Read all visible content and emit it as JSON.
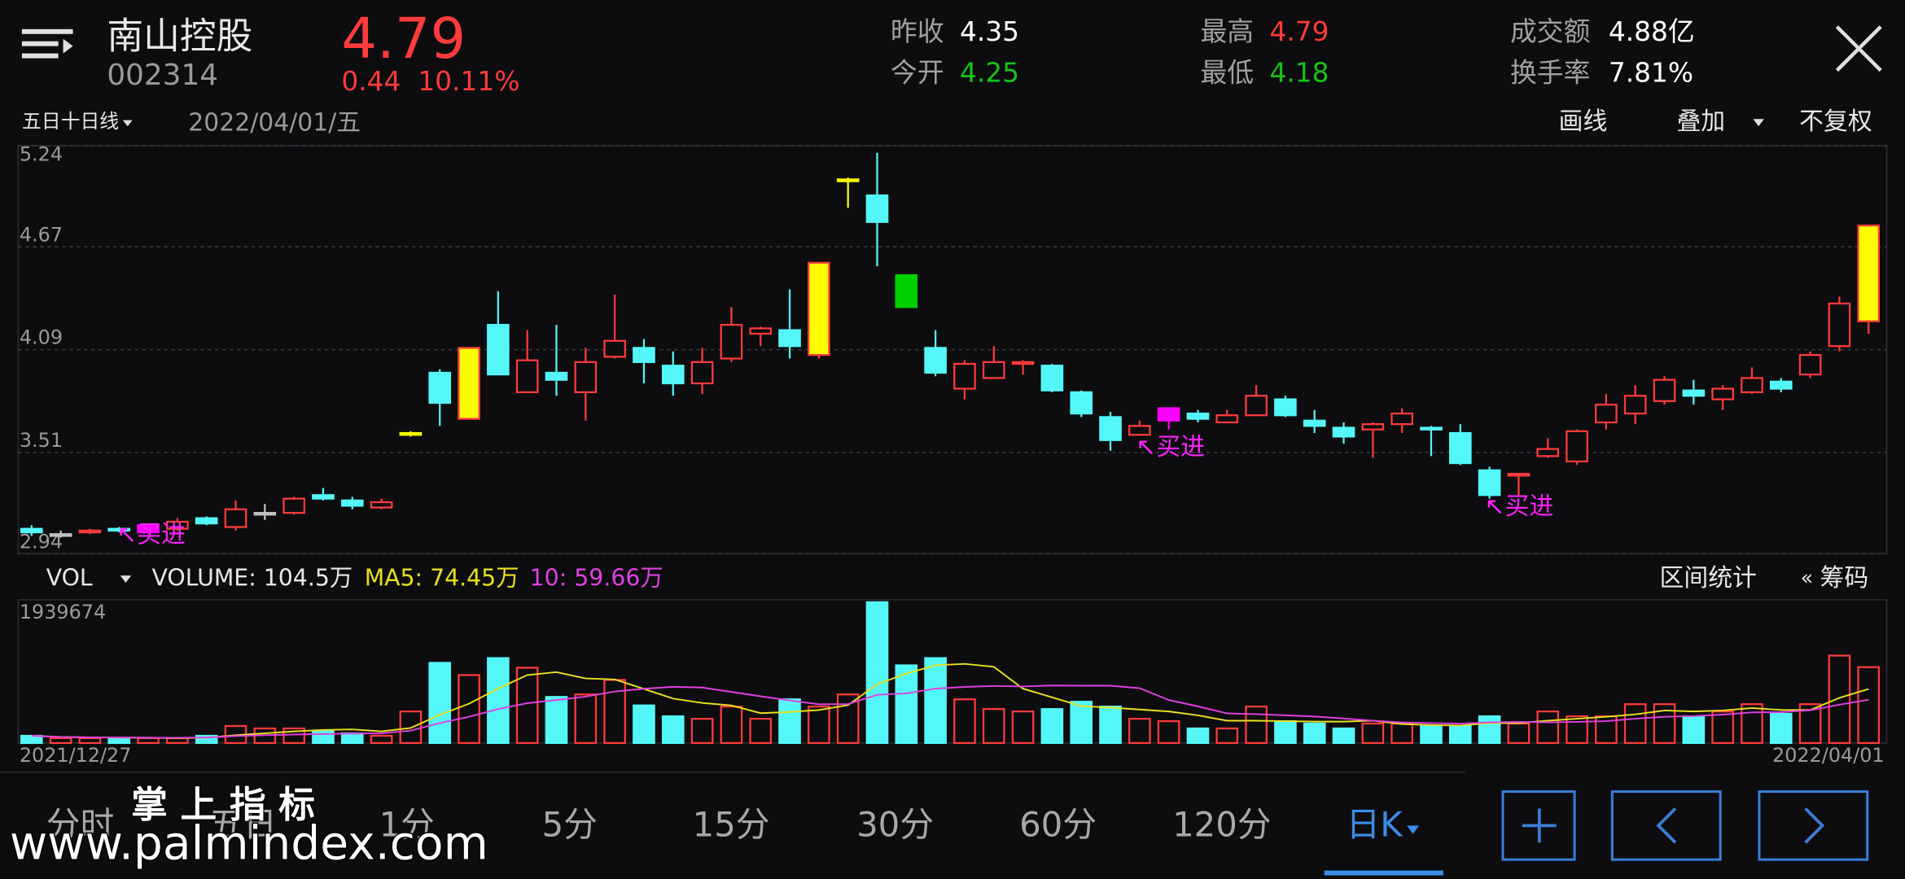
{
  "header": {
    "name": "南山控股",
    "code": "002314",
    "price": "4.79",
    "change": "0.44",
    "change_pct": "10.11%",
    "stats": [
      {
        "label": "昨收",
        "value": "4.35",
        "color": "#ffffff"
      },
      {
        "label": "今开",
        "value": "4.25",
        "color": "#19c119"
      },
      {
        "label": "最高",
        "value": "4.79",
        "color": "#ff3b3b"
      },
      {
        "label": "最低",
        "value": "4.18",
        "color": "#19c119"
      },
      {
        "label": "成交额",
        "value": "4.88亿",
        "color": "#ffffff"
      },
      {
        "label": "换手率",
        "value": "7.81%",
        "color": "#ffffff"
      }
    ]
  },
  "toolbar": {
    "ma_selector": "五日十日线",
    "date": "2022/04/01/五",
    "buttons": [
      "画线",
      "叠加",
      "不复权"
    ]
  },
  "chart_data": [
    {
      "type": "candlestick",
      "categories": [
        "2021/12/27",
        null,
        null,
        null,
        null,
        null,
        null,
        null,
        null,
        null,
        null,
        null,
        null,
        null,
        null,
        null,
        null,
        null,
        null,
        null,
        null,
        null,
        null,
        null,
        null,
        null,
        null,
        null,
        null,
        null,
        null,
        null,
        null,
        null,
        null,
        null,
        null,
        null,
        null,
        null,
        null,
        null,
        null,
        null,
        null,
        null,
        null,
        null,
        null,
        null,
        null,
        null,
        null,
        null,
        null,
        null,
        null,
        null,
        null,
        null,
        null,
        null,
        null,
        "2022/04/01"
      ],
      "open": [
        3.08,
        3.05,
        3.06,
        3.08,
        3.06,
        3.08,
        3.14,
        3.09,
        3.17,
        3.17,
        3.27,
        3.24,
        3.2,
        3.61,
        3.96,
        3.7,
        4.23,
        3.85,
        3.96,
        3.85,
        4.05,
        4.1,
        4.0,
        3.9,
        4.04,
        4.18,
        4.2,
        4.06,
        5.05,
        4.96,
        4.51,
        4.1,
        3.87,
        3.93,
        4.01,
        4.0,
        3.85,
        3.71,
        3.61,
        3.69,
        3.73,
        3.68,
        3.72,
        3.81,
        3.69,
        3.65,
        3.64,
        3.67,
        3.65,
        3.62,
        3.41,
        3.38,
        3.49,
        3.46,
        3.68,
        3.73,
        3.8,
        3.86,
        3.81,
        3.85,
        3.91,
        3.95,
        4.11,
        4.25
      ],
      "high": [
        3.1,
        3.07,
        3.08,
        3.09,
        3.11,
        3.14,
        3.15,
        3.24,
        3.22,
        3.26,
        3.31,
        3.26,
        3.25,
        3.63,
        3.98,
        4.1,
        4.42,
        4.2,
        4.23,
        4.1,
        4.4,
        4.15,
        4.08,
        4.1,
        4.33,
        4.22,
        4.43,
        4.58,
        5.06,
        5.2,
        4.51,
        4.2,
        4.03,
        4.11,
        4.03,
        4.01,
        3.86,
        3.74,
        3.69,
        3.76,
        3.75,
        3.75,
        3.89,
        3.83,
        3.75,
        3.68,
        3.68,
        3.76,
        3.66,
        3.67,
        3.43,
        3.39,
        3.59,
        3.64,
        3.84,
        3.89,
        3.94,
        3.92,
        3.89,
        3.99,
        3.93,
        4.08,
        4.39,
        4.79
      ],
      "low": [
        3.04,
        3.03,
        3.05,
        3.06,
        3.05,
        3.07,
        3.1,
        3.07,
        3.13,
        3.16,
        3.24,
        3.19,
        3.19,
        3.6,
        3.66,
        3.7,
        3.95,
        3.85,
        3.83,
        3.69,
        4.04,
        3.9,
        3.83,
        3.84,
        4.02,
        4.11,
        4.04,
        4.04,
        4.89,
        4.56,
        4.33,
        3.94,
        3.81,
        3.93,
        3.95,
        3.85,
        3.71,
        3.52,
        3.61,
        3.64,
        3.68,
        3.68,
        3.72,
        3.71,
        3.62,
        3.56,
        3.48,
        3.62,
        3.49,
        3.44,
        3.25,
        3.27,
        3.48,
        3.44,
        3.64,
        3.67,
        3.78,
        3.78,
        3.75,
        3.84,
        3.85,
        3.93,
        4.08,
        4.18
      ],
      "close": [
        3.06,
        3.05,
        3.07,
        3.07,
        3.1,
        3.12,
        3.11,
        3.19,
        3.17,
        3.25,
        3.25,
        3.21,
        3.23,
        3.62,
        3.79,
        4.1,
        3.95,
        4.03,
        3.92,
        4.02,
        4.14,
        4.02,
        3.9,
        4.02,
        4.23,
        4.21,
        4.11,
        4.58,
        5.05,
        4.81,
        4.33,
        3.96,
        4.01,
        4.02,
        4.02,
        3.86,
        3.73,
        3.58,
        3.66,
        3.76,
        3.7,
        3.72,
        3.83,
        3.72,
        3.66,
        3.6,
        3.67,
        3.73,
        3.64,
        3.45,
        3.27,
        3.39,
        3.53,
        3.63,
        3.78,
        3.83,
        3.92,
        3.83,
        3.87,
        3.93,
        3.87,
        4.06,
        4.35,
        4.79
      ],
      "colors": [
        "#54f7f7",
        "#c0c0c0",
        "#ff3b3b",
        "#54f7f7",
        "#ff00ff",
        "#ff3b3b",
        "#54f7f7",
        "#ff3b3b",
        "#c0c0c0",
        "#ff3b3b",
        "#54f7f7",
        "#54f7f7",
        "#ff3b3b",
        "#ffff00",
        "#54f7f7",
        "#ff3b3b",
        "#54f7f7",
        "#ff3b3b",
        "#54f7f7",
        "#ff3b3b",
        "#ff3b3b",
        "#54f7f7",
        "#54f7f7",
        "#ff3b3b",
        "#ff3b3b",
        "#ff3b3b",
        "#54f7f7",
        "#ff3b3b",
        "#ffff00",
        "#54f7f7",
        "#00d000",
        "#54f7f7",
        "#ff3b3b",
        "#ff3b3b",
        "#ff3b3b",
        "#54f7f7",
        "#54f7f7",
        "#54f7f7",
        "#ff3b3b",
        "#ff00ff",
        "#54f7f7",
        "#ff3b3b",
        "#ff3b3b",
        "#54f7f7",
        "#54f7f7",
        "#54f7f7",
        "#ff3b3b",
        "#ff3b3b",
        "#54f7f7",
        "#54f7f7",
        "#54f7f7",
        "#ff3b3b",
        "#ff3b3b",
        "#ff3b3b",
        "#ff3b3b",
        "#ff3b3b",
        "#ff3b3b",
        "#54f7f7",
        "#ff3b3b",
        "#ff3b3b",
        "#54f7f7",
        "#ff3b3b",
        "#ff3b3b",
        "#ff3b3b"
      ],
      "fills": [
        "#54f7f7",
        "#c0c0c0",
        null,
        "#54f7f7",
        "#ff00ff",
        null,
        "#54f7f7",
        null,
        "#c0c0c0",
        null,
        "#54f7f7",
        "#54f7f7",
        null,
        "#ffff00",
        "#54f7f7",
        "#ffff00",
        "#54f7f7",
        null,
        "#54f7f7",
        null,
        null,
        "#54f7f7",
        "#54f7f7",
        null,
        null,
        null,
        "#54f7f7",
        "#ffff00",
        "#ffff00",
        "#54f7f7",
        "#00d000",
        "#54f7f7",
        null,
        null,
        null,
        "#54f7f7",
        "#54f7f7",
        "#54f7f7",
        null,
        "#ff00ff",
        "#54f7f7",
        null,
        null,
        "#54f7f7",
        "#54f7f7",
        "#54f7f7",
        null,
        null,
        "#54f7f7",
        "#54f7f7",
        "#54f7f7",
        null,
        null,
        null,
        null,
        null,
        null,
        "#54f7f7",
        null,
        null,
        "#54f7f7",
        null,
        null,
        "#ffff00"
      ],
      "ylim": [
        2.94,
        5.24
      ],
      "yticks": [
        5.24,
        4.67,
        4.09,
        3.51,
        2.94
      ],
      "grid": true,
      "annotations": [
        "↖买进",
        "↖买进",
        "↖买进"
      ],
      "annotation_color": "#ff22ff"
    },
    {
      "type": "bar",
      "values": [
        100000,
        67000,
        67000,
        67000,
        67000,
        67000,
        100000,
        234000,
        201000,
        201000,
        167000,
        134000,
        100000,
        435000,
        1104000,
        936000,
        1170000,
        1037000,
        635000,
        669000,
        869000,
        518000,
        368000,
        334000,
        502000,
        334000,
        602000,
        502000,
        669000,
        1939674,
        1070000,
        1170000,
        602000,
        468000,
        435000,
        468000,
        569000,
        502000,
        334000,
        301000,
        201000,
        201000,
        502000,
        301000,
        268000,
        201000,
        268000,
        268000,
        234000,
        234000,
        368000,
        268000,
        435000,
        368000,
        368000,
        535000,
        535000,
        368000,
        435000,
        535000,
        402000,
        535000,
        1204000,
        1045000
      ],
      "up_color": "#ff3b3b",
      "down_color": "#54f7f7",
      "ma_colors": [
        "#e8e020",
        "#e040e0"
      ],
      "ylim": [
        0,
        1939674
      ],
      "yticks": [
        1939674
      ]
    }
  ],
  "volume_bar": {
    "indicator": "VOL",
    "volume": "VOLUME: 104.5万",
    "ma5": "MA5: 74.45万",
    "ma10": "10: 59.66万",
    "buttons": [
      "区间统计",
      "筹码"
    ]
  },
  "tabs": [
    "分时",
    "五日",
    "1分",
    "5分",
    "15分",
    "30分",
    "60分",
    "120分",
    "日K"
  ],
  "watermark": {
    "title": "掌 上 指 标",
    "url": "www.palmindex.com"
  }
}
